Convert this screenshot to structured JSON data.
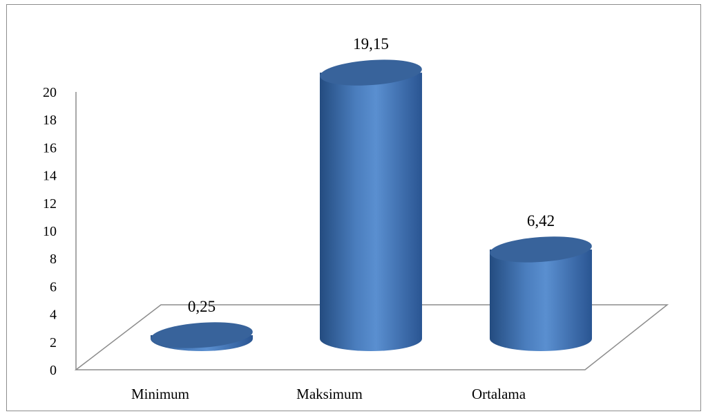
{
  "chart_data": {
    "type": "bar",
    "style": "3d-cylinder",
    "categories": [
      "Minimum",
      "Maksimum",
      "Ortalama"
    ],
    "values": [
      0.25,
      19.15,
      6.42
    ],
    "value_labels": [
      "0,25",
      "19,15",
      "6,42"
    ],
    "yticks": [
      "0",
      "2",
      "4",
      "6",
      "8",
      "10",
      "12",
      "14",
      "16",
      "18",
      "20"
    ],
    "ylim": [
      0,
      20
    ],
    "grid": false,
    "legend": "none",
    "bar_color": "#4f81bd",
    "title": "",
    "xlabel": "",
    "ylabel": ""
  }
}
